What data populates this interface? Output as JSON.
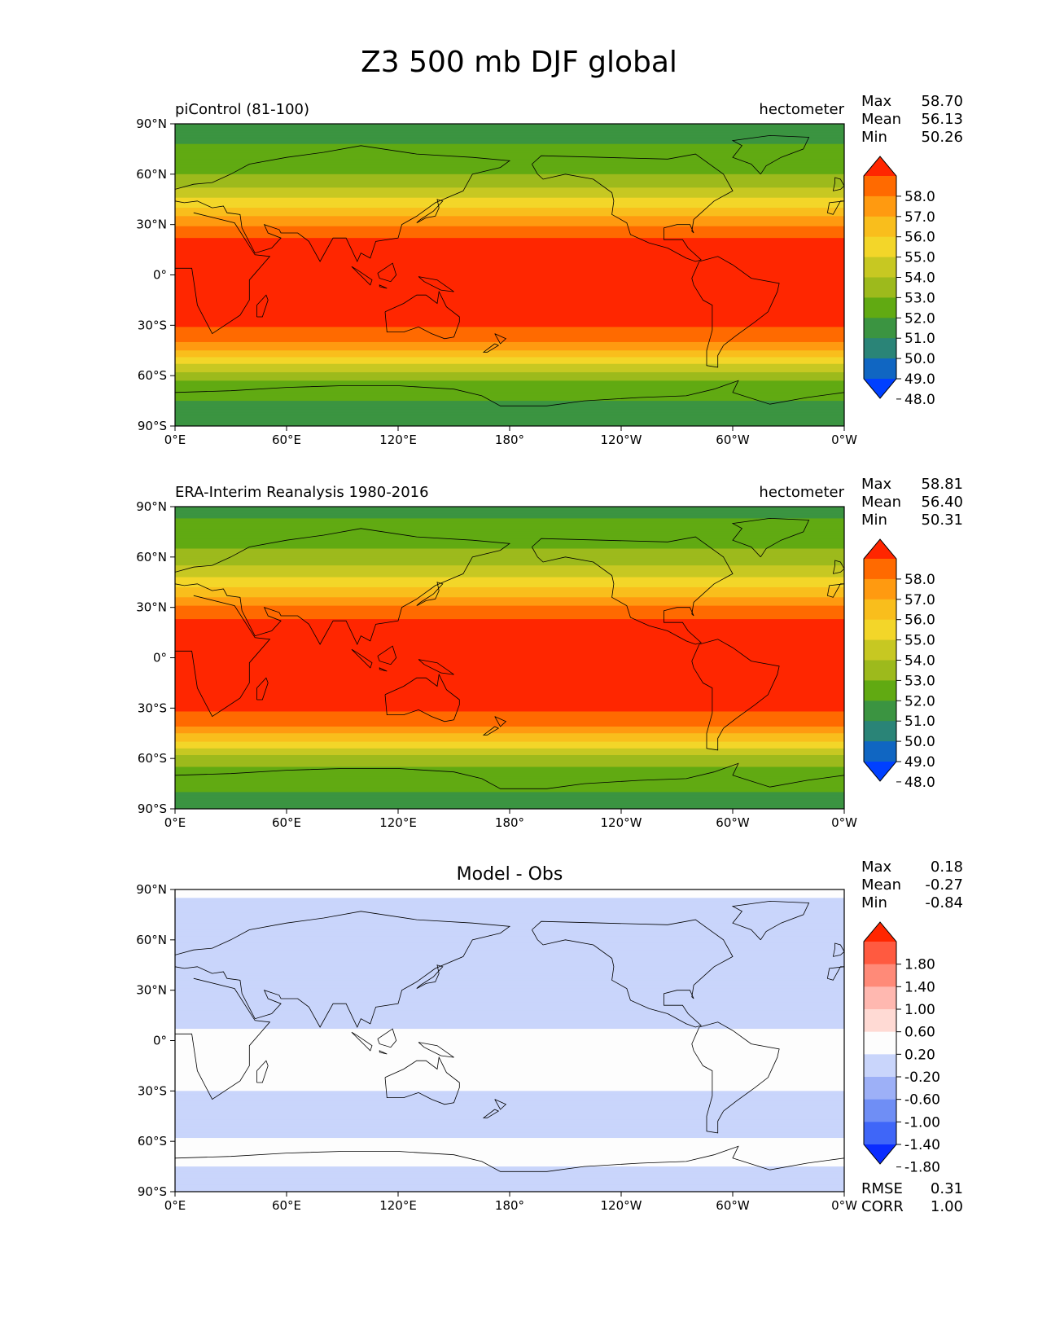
{
  "figure": {
    "title": "Z3 500 mb DJF global"
  },
  "axes_ticks": {
    "x": [
      "0°E",
      "60°E",
      "120°E",
      "180°",
      "120°W",
      "60°W",
      "0°W"
    ],
    "y": [
      "90°N",
      "60°N",
      "30°N",
      "0°",
      "30°S",
      "60°S",
      "90°S"
    ]
  },
  "chart_data": [
    {
      "type": "heatmap",
      "title": "piControl (81-100)",
      "units": "hectometer",
      "stats": [
        {
          "label": "Max",
          "value": "58.70"
        },
        {
          "label": "Mean",
          "value": "56.13"
        },
        {
          "label": "Min",
          "value": "50.26"
        }
      ],
      "xlim": [
        0,
        360
      ],
      "ylim": [
        -90,
        90
      ],
      "colorbar": {
        "ticks": [
          "58.0",
          "57.0",
          "56.0",
          "55.0",
          "54.0",
          "53.0",
          "52.0",
          "51.0",
          "50.0",
          "49.0",
          "48.0"
        ],
        "colors": [
          "#ff2600",
          "#ff6a00",
          "#ff9a10",
          "#f9be1c",
          "#f3d629",
          "#c7c822",
          "#9dba1c",
          "#61aa12",
          "#3b9441",
          "#2a8477",
          "#1066c2",
          "#0040ff"
        ],
        "extend": "both"
      },
      "zonal_profile": {
        "lat": [
          90,
          80,
          70,
          60,
          50,
          40,
          30,
          20,
          10,
          0,
          -10,
          -20,
          -30,
          -40,
          -50,
          -60,
          -70,
          -80,
          -90
        ],
        "value": [
          50.6,
          50.9,
          51.3,
          52.0,
          53.3,
          55.0,
          56.9,
          58.2,
          58.5,
          58.5,
          58.5,
          58.4,
          58.1,
          57.0,
          54.8,
          52.4,
          51.2,
          50.8,
          50.5
        ]
      }
    },
    {
      "type": "heatmap",
      "title": "ERA-Interim Reanalysis 1980-2016",
      "units": "hectometer",
      "stats": [
        {
          "label": "Max",
          "value": "58.81"
        },
        {
          "label": "Mean",
          "value": "56.40"
        },
        {
          "label": "Min",
          "value": "50.31"
        }
      ],
      "xlim": [
        0,
        360
      ],
      "ylim": [
        -90,
        90
      ],
      "colorbar": {
        "ticks": [
          "58.0",
          "57.0",
          "56.0",
          "55.0",
          "54.0",
          "53.0",
          "52.0",
          "51.0",
          "50.0",
          "49.0",
          "48.0"
        ],
        "colors": [
          "#ff2600",
          "#ff6a00",
          "#ff9a10",
          "#f9be1c",
          "#f3d629",
          "#c7c822",
          "#9dba1c",
          "#61aa12",
          "#3b9441",
          "#2a8477",
          "#1066c2",
          "#0040ff"
        ],
        "extend": "both"
      },
      "zonal_profile": {
        "lat": [
          90,
          80,
          70,
          60,
          50,
          40,
          30,
          20,
          10,
          0,
          -10,
          -20,
          -30,
          -40,
          -50,
          -60,
          -70,
          -80,
          -90
        ],
        "value": [
          50.8,
          51.1,
          51.6,
          52.4,
          53.6,
          55.3,
          57.1,
          58.3,
          58.6,
          58.6,
          58.6,
          58.5,
          58.2,
          57.2,
          55.0,
          52.6,
          51.4,
          51.0,
          50.7
        ]
      }
    },
    {
      "type": "heatmap",
      "title": "Model - Obs",
      "units": "",
      "stats": [
        {
          "label": "Max",
          "value": "0.18"
        },
        {
          "label": "Mean",
          "value": "-0.27"
        },
        {
          "label": "Min",
          "value": "-0.84"
        }
      ],
      "footer_stats": [
        {
          "label": "RMSE",
          "value": "0.31"
        },
        {
          "label": "CORR",
          "value": "1.00"
        }
      ],
      "xlim": [
        0,
        360
      ],
      "ylim": [
        -90,
        90
      ],
      "colorbar": {
        "ticks": [
          "1.80",
          "1.40",
          "1.00",
          "0.60",
          "0.20",
          "-0.20",
          "-0.60",
          "-1.00",
          "-1.40",
          "-1.80"
        ],
        "colors": [
          "#ff2600",
          "#ff5a40",
          "#ff8a78",
          "#ffb8b0",
          "#ffdad4",
          "#fdfdfd",
          "#c9d5fb",
          "#9db0f7",
          "#6f8ef5",
          "#3f66f8",
          "#0a2cff"
        ],
        "extend": "both"
      },
      "zonal_profile": {
        "lat": [
          90,
          80,
          70,
          60,
          50,
          40,
          30,
          20,
          10,
          0,
          -10,
          -20,
          -30,
          -40,
          -50,
          -60,
          -70,
          -80,
          -90
        ],
        "value": [
          -0.1,
          -0.3,
          -0.4,
          -0.45,
          -0.5,
          -0.55,
          -0.5,
          -0.35,
          -0.25,
          -0.1,
          -0.05,
          -0.1,
          -0.2,
          -0.4,
          -0.45,
          -0.15,
          -0.1,
          -0.3,
          -0.2
        ]
      }
    }
  ]
}
